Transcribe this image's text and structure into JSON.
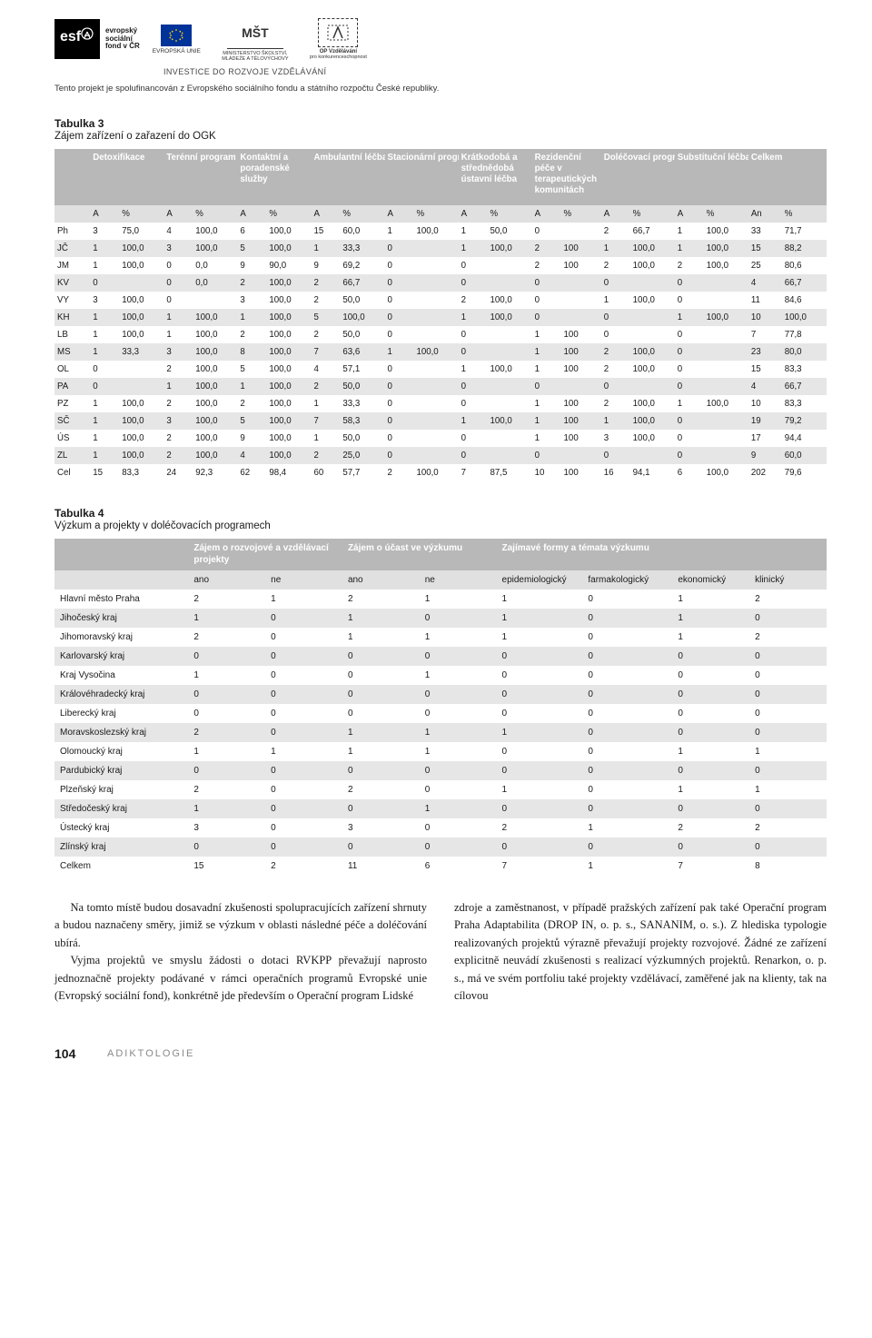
{
  "header": {
    "esf_lines": [
      "evropský",
      "sociální",
      "fond v ČR"
    ],
    "eu_label": "EVROPSKÁ UNIE",
    "msmt_top": "MŠT",
    "msmt_sub": "MINISTERSTVO ŠKOLSTVÍ, MLÁDEŽE A TĚLOVÝCHOVY",
    "opvk_top": "OP Vzdělávání",
    "opvk_sub": "pro konkurenceschopnost",
    "invest": "INVESTICE DO ROZVOJE VZDĚLÁVÁNÍ",
    "cofinance": "Tento projekt je spolufinancován z Evropského sociálního fondu a státního rozpočtu České republiky."
  },
  "table3": {
    "caption": "Tabulka 3",
    "subcaption": "Zájem zařízení o zařazení do OGK",
    "groups": [
      "Detoxifikace",
      "Terénní program",
      "Kontaktní a poradenské služby",
      "Ambulantní léčba",
      "Stacionární programy",
      "Krátkodobá a střednědobá ústavní léčba",
      "Rezidenční péče v terapeutických komunitách",
      "Doléčovací programy",
      "Substituční léčba",
      "Celkem"
    ],
    "sub_a": "A",
    "sub_pct": "%",
    "sub_an": "An",
    "rows": [
      {
        "k": "Ph",
        "c": [
          "3",
          "75,0",
          "4",
          "100,0",
          "6",
          "100,0",
          "15",
          "60,0",
          "1",
          "100,0",
          "1",
          "50,0",
          "0",
          "",
          "2",
          "66,7",
          "1",
          "100,0",
          "33",
          "71,7"
        ]
      },
      {
        "k": "JČ",
        "c": [
          "1",
          "100,0",
          "3",
          "100,0",
          "5",
          "100,0",
          "1",
          "33,3",
          "0",
          "",
          "1",
          "100,0",
          "2",
          "100",
          "1",
          "100,0",
          "1",
          "100,0",
          "15",
          "88,2"
        ]
      },
      {
        "k": "JM",
        "c": [
          "1",
          "100,0",
          "0",
          "0,0",
          "9",
          "90,0",
          "9",
          "69,2",
          "0",
          "",
          "0",
          "",
          "2",
          "100",
          "2",
          "100,0",
          "2",
          "100,0",
          "25",
          "80,6"
        ]
      },
      {
        "k": "KV",
        "c": [
          "0",
          "",
          "0",
          "0,0",
          "2",
          "100,0",
          "2",
          "66,7",
          "0",
          "",
          "0",
          "",
          "0",
          "",
          "0",
          "",
          "0",
          "",
          "4",
          "66,7"
        ]
      },
      {
        "k": "VY",
        "c": [
          "3",
          "100,0",
          "0",
          "",
          "3",
          "100,0",
          "2",
          "50,0",
          "0",
          "",
          "2",
          "100,0",
          "0",
          "",
          "1",
          "100,0",
          "0",
          "",
          "11",
          "84,6"
        ]
      },
      {
        "k": "KH",
        "c": [
          "1",
          "100,0",
          "1",
          "100,0",
          "1",
          "100,0",
          "5",
          "100,0",
          "0",
          "",
          "1",
          "100,0",
          "0",
          "",
          "0",
          "",
          "1",
          "100,0",
          "10",
          "100,0"
        ]
      },
      {
        "k": "LB",
        "c": [
          "1",
          "100,0",
          "1",
          "100,0",
          "2",
          "100,0",
          "2",
          "50,0",
          "0",
          "",
          "0",
          "",
          "1",
          "100",
          "0",
          "",
          "0",
          "",
          "7",
          "77,8"
        ]
      },
      {
        "k": "MS",
        "c": [
          "1",
          "33,3",
          "3",
          "100,0",
          "8",
          "100,0",
          "7",
          "63,6",
          "1",
          "100,0",
          "0",
          "",
          "1",
          "100",
          "2",
          "100,0",
          "0",
          "",
          "23",
          "80,0"
        ]
      },
      {
        "k": "OL",
        "c": [
          "0",
          "",
          "2",
          "100,0",
          "5",
          "100,0",
          "4",
          "57,1",
          "0",
          "",
          "1",
          "100,0",
          "1",
          "100",
          "2",
          "100,0",
          "0",
          "",
          "15",
          "83,3"
        ]
      },
      {
        "k": "PA",
        "c": [
          "0",
          "",
          "1",
          "100,0",
          "1",
          "100,0",
          "2",
          "50,0",
          "0",
          "",
          "0",
          "",
          "0",
          "",
          "0",
          "",
          "0",
          "",
          "4",
          "66,7"
        ]
      },
      {
        "k": "PZ",
        "c": [
          "1",
          "100,0",
          "2",
          "100,0",
          "2",
          "100,0",
          "1",
          "33,3",
          "0",
          "",
          "0",
          "",
          "1",
          "100",
          "2",
          "100,0",
          "1",
          "100,0",
          "10",
          "83,3"
        ]
      },
      {
        "k": "SČ",
        "c": [
          "1",
          "100,0",
          "3",
          "100,0",
          "5",
          "100,0",
          "7",
          "58,3",
          "0",
          "",
          "1",
          "100,0",
          "1",
          "100",
          "1",
          "100,0",
          "0",
          "",
          "19",
          "79,2"
        ]
      },
      {
        "k": "ÚS",
        "c": [
          "1",
          "100,0",
          "2",
          "100,0",
          "9",
          "100,0",
          "1",
          "50,0",
          "0",
          "",
          "0",
          "",
          "1",
          "100",
          "3",
          "100,0",
          "0",
          "",
          "17",
          "94,4"
        ]
      },
      {
        "k": "ZL",
        "c": [
          "1",
          "100,0",
          "2",
          "100,0",
          "4",
          "100,0",
          "2",
          "25,0",
          "0",
          "",
          "0",
          "",
          "0",
          "",
          "0",
          "",
          "0",
          "",
          "9",
          "60,0"
        ]
      },
      {
        "k": "Cel",
        "c": [
          "15",
          "83,3",
          "24",
          "92,3",
          "62",
          "98,4",
          "60",
          "57,7",
          "2",
          "100,0",
          "7",
          "87,5",
          "10",
          "100",
          "16",
          "94,1",
          "6",
          "100,0",
          "202",
          "79,6"
        ]
      }
    ]
  },
  "table4": {
    "caption": "Tabulka 4",
    "subcaption": "Výzkum a projekty v doléčovacích programech",
    "groups": [
      "Zájem o rozvojové a vzdělávací projekty",
      "Zájem o účast ve výzkumu",
      "Zajímavé formy a témata výzkumu"
    ],
    "sub": [
      "ano",
      "ne",
      "ano",
      "ne",
      "epidemiologický",
      "farmakologický",
      "ekonomický",
      "klinický"
    ],
    "rows": [
      {
        "k": "Hlavní město Praha",
        "c": [
          "2",
          "1",
          "2",
          "1",
          "1",
          "0",
          "1",
          "2"
        ]
      },
      {
        "k": "Jihočeský kraj",
        "c": [
          "1",
          "0",
          "1",
          "0",
          "1",
          "0",
          "1",
          "0"
        ]
      },
      {
        "k": "Jihomoravský kraj",
        "c": [
          "2",
          "0",
          "1",
          "1",
          "1",
          "0",
          "1",
          "2"
        ]
      },
      {
        "k": "Karlovarský kraj",
        "c": [
          "0",
          "0",
          "0",
          "0",
          "0",
          "0",
          "0",
          "0"
        ]
      },
      {
        "k": "Kraj Vysočina",
        "c": [
          "1",
          "0",
          "0",
          "1",
          "0",
          "0",
          "0",
          "0"
        ]
      },
      {
        "k": "Královéhradecký kraj",
        "c": [
          "0",
          "0",
          "0",
          "0",
          "0",
          "0",
          "0",
          "0"
        ]
      },
      {
        "k": "Liberecký kraj",
        "c": [
          "0",
          "0",
          "0",
          "0",
          "0",
          "0",
          "0",
          "0"
        ]
      },
      {
        "k": "Moravskoslezský kraj",
        "c": [
          "2",
          "0",
          "1",
          "1",
          "1",
          "0",
          "0",
          "0"
        ]
      },
      {
        "k": "Olomoucký kraj",
        "c": [
          "1",
          "1",
          "1",
          "1",
          "0",
          "0",
          "1",
          "1"
        ]
      },
      {
        "k": "Pardubický kraj",
        "c": [
          "0",
          "0",
          "0",
          "0",
          "0",
          "0",
          "0",
          "0"
        ]
      },
      {
        "k": "Plzeňský kraj",
        "c": [
          "2",
          "0",
          "2",
          "0",
          "1",
          "0",
          "1",
          "1"
        ]
      },
      {
        "k": "Středočeský kraj",
        "c": [
          "1",
          "0",
          "0",
          "1",
          "0",
          "0",
          "0",
          "0"
        ]
      },
      {
        "k": "Ústecký kraj",
        "c": [
          "3",
          "0",
          "3",
          "0",
          "2",
          "1",
          "2",
          "2"
        ]
      },
      {
        "k": "Zlínský kraj",
        "c": [
          "0",
          "0",
          "0",
          "0",
          "0",
          "0",
          "0",
          "0"
        ]
      },
      {
        "k": "Celkem",
        "c": [
          "15",
          "2",
          "11",
          "6",
          "7",
          "1",
          "7",
          "8"
        ]
      }
    ]
  },
  "body": {
    "left_p1": "Na tomto místě budou dosavadní zkušenosti spolupracujících zařízení shrnuty a budou naznačeny směry, jimiž se výzkum v oblasti následné péče a doléčování ubírá.",
    "left_p2": "Vyjma projektů ve smyslu žádosti o dotaci RVKPP převažují naprosto jednoznačně projekty podávané v rámci operačních programů Evropské unie (Evropský sociální fond), konkrétně jde především o Operační program Lidské",
    "right_p1": "zdroje a zaměstnanost, v případě pražských zařízení pak také Operační program Praha Adaptabilita (DROP IN, o. p. s., SANANIM, o. s.). Z hlediska typologie realizovaných projektů výrazně převažují projekty rozvojové. Žádné ze zařízení explicitně neuvádí zkušenosti s realizací výzkumných projektů. Renarkon, o. p. s., má ve svém portfoliu také projekty vzdělávací, zaměřené jak na klienty, tak na cílovou"
  },
  "footer": {
    "page": "104",
    "journal": "ADIKTOLOGIE"
  },
  "colors": {
    "header_bg": "#b8b8b8",
    "header_fg": "#ffffff",
    "sub_bg": "#e0e0e0",
    "row_even": "#e6e6e6",
    "row_odd": "#ffffff"
  }
}
